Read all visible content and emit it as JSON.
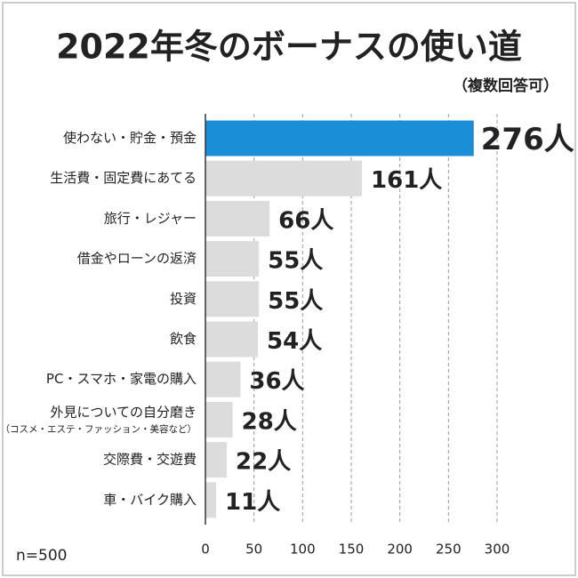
{
  "chart_data": {
    "type": "barh",
    "title": "2022年冬のボーナスの使い道",
    "subtitle": "（複数回答可）",
    "note": "n=500",
    "categories": [
      "使わない・貯金・預金",
      "生活費・固定費にあてる",
      "旅行・レジャー",
      "借金やローンの返済",
      "投資",
      "飲食",
      "PC・スマホ・家電の購入",
      "外見についての自分磨き",
      "交際費・交遊費",
      "車・バイク購入"
    ],
    "category_notes": [
      null,
      null,
      null,
      null,
      null,
      null,
      null,
      "（コスメ・エステ・ファッション・美容など）",
      null,
      null
    ],
    "values": [
      276,
      161,
      66,
      55,
      55,
      54,
      36,
      28,
      22,
      11
    ],
    "value_labels": [
      "276人",
      "161人",
      "66人",
      "55人",
      "55人",
      "54人",
      "36人",
      "28人",
      "22人",
      "11人"
    ],
    "colors": [
      "#1a8fd8",
      "#dcdcdc",
      "#dcdcdc",
      "#dcdcdc",
      "#dcdcdc",
      "#dcdcdc",
      "#dcdcdc",
      "#dcdcdc",
      "#dcdcdc",
      "#dcdcdc"
    ],
    "xlim": [
      0,
      300
    ],
    "xticks": [
      0,
      50,
      100,
      150,
      200,
      250,
      300
    ],
    "grid": true
  }
}
